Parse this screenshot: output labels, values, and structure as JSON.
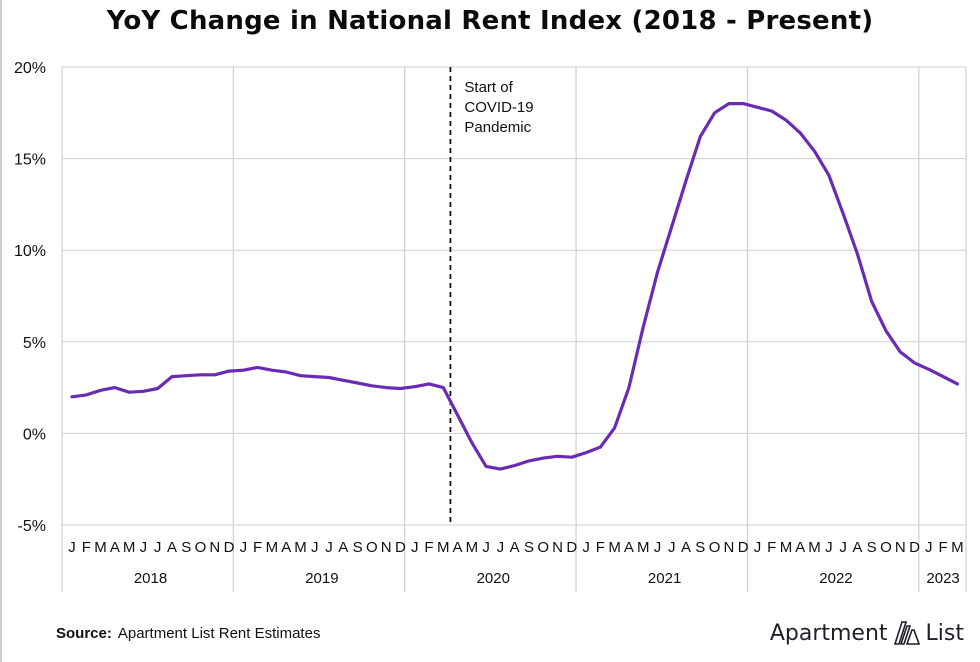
{
  "chart_data": {
    "type": "line",
    "title": "YoY Change in National Rent Index (2018 - Present)",
    "ylim": [
      -5,
      20
    ],
    "yticks": [
      {
        "value": 20,
        "label": "20%"
      },
      {
        "value": 15,
        "label": "15%"
      },
      {
        "value": 10,
        "label": "10%"
      },
      {
        "value": 5,
        "label": "5%"
      },
      {
        "value": 0,
        "label": "0%"
      },
      {
        "value": -5,
        "label": "-5%"
      }
    ],
    "years": [
      "2018",
      "2019",
      "2020",
      "2021",
      "2022",
      "2023"
    ],
    "month_letters": [
      "J",
      "F",
      "M",
      "A",
      "M",
      "J",
      "J",
      "A",
      "S",
      "O",
      "N",
      "D"
    ],
    "x": [
      "2018-01",
      "2018-02",
      "2018-03",
      "2018-04",
      "2018-05",
      "2018-06",
      "2018-07",
      "2018-08",
      "2018-09",
      "2018-10",
      "2018-11",
      "2018-12",
      "2019-01",
      "2019-02",
      "2019-03",
      "2019-04",
      "2019-05",
      "2019-06",
      "2019-07",
      "2019-08",
      "2019-09",
      "2019-10",
      "2019-11",
      "2019-12",
      "2020-01",
      "2020-02",
      "2020-03",
      "2020-04",
      "2020-05",
      "2020-06",
      "2020-07",
      "2020-08",
      "2020-09",
      "2020-10",
      "2020-11",
      "2020-12",
      "2021-01",
      "2021-02",
      "2021-03",
      "2021-04",
      "2021-05",
      "2021-06",
      "2021-07",
      "2021-08",
      "2021-09",
      "2021-10",
      "2021-11",
      "2021-12",
      "2022-01",
      "2022-02",
      "2022-03",
      "2022-04",
      "2022-05",
      "2022-06",
      "2022-07",
      "2022-08",
      "2022-09",
      "2022-10",
      "2022-11",
      "2022-12",
      "2023-01",
      "2023-02",
      "2023-03"
    ],
    "series": [
      {
        "values": [
          2.0,
          2.1,
          2.35,
          2.5,
          2.25,
          2.3,
          2.45,
          3.1,
          3.15,
          3.2,
          3.2,
          3.4,
          3.45,
          3.6,
          3.45,
          3.35,
          3.15,
          3.1,
          3.05,
          2.9,
          2.75,
          2.6,
          2.5,
          2.45,
          2.55,
          2.7,
          2.5,
          1.0,
          -0.5,
          -1.8,
          -1.95,
          -1.75,
          -1.5,
          -1.35,
          -1.25,
          -1.3,
          -1.05,
          -0.75,
          0.3,
          2.5,
          5.8,
          8.8,
          11.3,
          13.8,
          16.2,
          17.5,
          18.0,
          18.0,
          17.8,
          17.6,
          17.1,
          16.4,
          15.4,
          14.1,
          12.0,
          9.8,
          7.2,
          5.6,
          4.45,
          3.85,
          3.5,
          3.1,
          2.7
        ]
      }
    ],
    "annotation": {
      "x": "2020-03",
      "lines": [
        "Start of",
        "COVID-19",
        "Pandemic"
      ]
    },
    "colors": {
      "line": "#6a2bb4",
      "grid": "#cfcfcf",
      "dashed": "#111111",
      "text": "#111111"
    },
    "grid": "vertical year dividers"
  },
  "footer": {
    "source_label": "Source:",
    "source_text": "Apartment List Rent Estimates",
    "brand_left": "Apartment",
    "brand_right": "List",
    "brand_icon": "apartment-list-logo-icon"
  }
}
